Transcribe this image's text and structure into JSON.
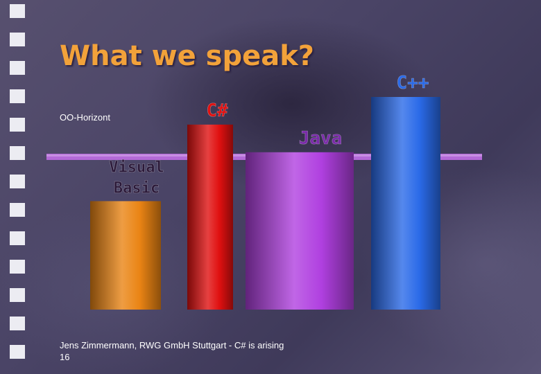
{
  "slide": {
    "title": "What we speak?",
    "horizon_label": "OO-Horizont",
    "footer": "Jens Zimmermann, RWG GmbH Stuttgart - C# is arising",
    "page_number": "16"
  },
  "colors": {
    "title": "#f2a23a",
    "horizon_line": "#b46ad8",
    "label_text": "#2a1838",
    "film_squares": "#ececf2"
  },
  "chart_data": {
    "type": "bar",
    "categories": [
      "Visual\nBasic",
      "C#",
      "Java",
      "C++"
    ],
    "values": [
      51,
      87,
      74,
      100
    ],
    "colors": [
      "#ea8414",
      "#e01010",
      "#b040e0",
      "#2a6ae8"
    ],
    "label_colors": [
      "#2a1838",
      "#e01010",
      "#7a2aaa",
      "#2a6ae8"
    ],
    "ylim": [
      0,
      100
    ],
    "reference_line": {
      "label": "OO-Horizont",
      "value": 72
    }
  }
}
